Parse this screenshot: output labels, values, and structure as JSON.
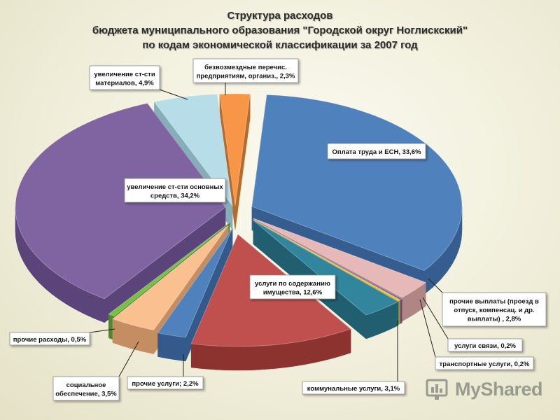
{
  "title": {
    "line1": "Структура расходов",
    "line2": "бюджета муниципального образования \"Городской округ Ноглискский\"",
    "line3": "по кодам экономической классификации за 2007 год"
  },
  "chart_data": {
    "type": "pie",
    "style": "3d-exploded",
    "slices": [
      {
        "key": "oplata",
        "label_lines": [
          "Оплата труда и ЕСН, 33,6%"
        ],
        "value": 33.6,
        "color": "#4f81bd",
        "side_color": "#355d8f"
      },
      {
        "key": "prochie_vyplaty",
        "label_lines": [
          "прочие выплаты (проезд в",
          "отпуск, компенсац. и др.",
          "выплаты) , 2,8%"
        ],
        "value": 2.8,
        "color": "#e6b9b8",
        "side_color": "#b08685"
      },
      {
        "key": "svyaz",
        "label_lines": [
          "услуги связи, 0,2%"
        ],
        "value": 0.2,
        "color": "#8064a2",
        "side_color": "#5c477a"
      },
      {
        "key": "transport",
        "label_lines": [
          "транспортные услуги, 0,2%"
        ],
        "value": 0.2,
        "color": "#f2c314",
        "side_color": "#b28d0a"
      },
      {
        "key": "kommunal",
        "label_lines": [
          "коммунальные услуги, 3,1%"
        ],
        "value": 3.1,
        "color": "#31859c",
        "side_color": "#215e70"
      },
      {
        "key": "soderzhanie",
        "label_lines": [
          "услуги по содержанию",
          "имущества, 12,6%"
        ],
        "value": 12.6,
        "color": "#c0504d",
        "side_color": "#8c3330"
      },
      {
        "key": "prochie_uslugi",
        "label_lines": [
          "прочие услуги; 2,2%"
        ],
        "value": 2.2,
        "color": "#4f81bd",
        "side_color": "#345a8c"
      },
      {
        "key": "soc",
        "label_lines": [
          "социальное",
          "обеспечение, 3,5%"
        ],
        "value": 3.5,
        "color": "#fac090",
        "side_color": "#c48e62"
      },
      {
        "key": "prochie_rashody",
        "label_lines": [
          "прочие расходы, 0,5%"
        ],
        "value": 0.5,
        "color": "#77c045",
        "side_color": "#4e8a2b"
      },
      {
        "key": "osnovnye",
        "label_lines": [
          "увеличение ст-сти основных",
          "средств, 34,2%"
        ],
        "value": 34.2,
        "color": "#8064a2",
        "side_color": "#5a447a"
      },
      {
        "key": "materialy",
        "label_lines": [
          "увеличение ст-сти",
          "материалов, 4,9%"
        ],
        "value": 4.9,
        "color": "#b7dee8",
        "side_color": "#86aeb8"
      },
      {
        "key": "bezvozmezdnye",
        "label_lines": [
          "безвозмездные перечис.",
          "предприятиям, организ., 2,3%"
        ],
        "value": 2.3,
        "color": "#f79646",
        "side_color": "#b86a2a"
      }
    ]
  },
  "watermark": {
    "text": "MyShared",
    "icon": "myshared-logo-icon"
  }
}
